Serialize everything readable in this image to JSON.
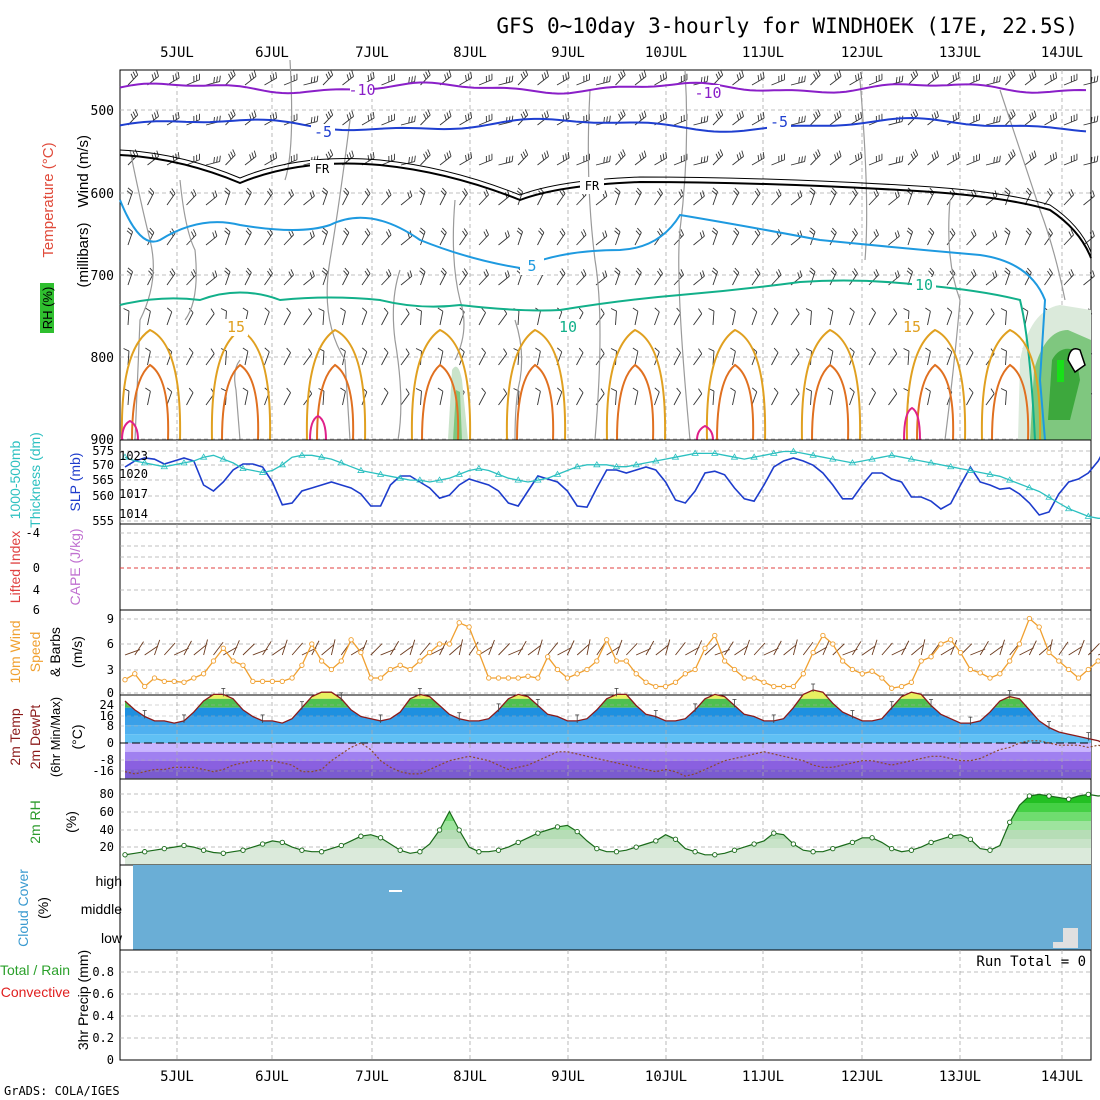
{
  "header": {
    "title": "GFS 0~10day 3-hourly for WINDHOEK (17E, 22.5S)",
    "footer": "GrADS: COLA/IGES",
    "run_total": "Run Total = 0"
  },
  "x_axis": {
    "date_labels": [
      "5JUL",
      "6JUL",
      "7JUL",
      "8JUL",
      "9JUL",
      "10JUL",
      "11JUL",
      "12JUL",
      "13JUL",
      "14JUL"
    ]
  },
  "colors": {
    "purple": "#8a1fc8",
    "blue": "#1f3fd0",
    "black": "#000000",
    "cyan": "#1e9ae0",
    "green_contour": "#12b08a",
    "orange": "#e0a020",
    "dark_orange": "#e07020",
    "magenta": "#e0208a",
    "grid": "#999999",
    "slp": "#1d3ccc",
    "thickness": "#2cc0c0",
    "wind10m": "#f0a030",
    "cloud": "#6aaed6",
    "rh": "#2a9a2a"
  },
  "panels": [
    {
      "id": "upper-air",
      "labels": [
        "Wind (m/s)",
        "Temperature (°C)",
        "(millibars)",
        "RH (%)"
      ],
      "y_ticks": [
        "500",
        "600",
        "700",
        "800",
        "900"
      ],
      "contour_labels": [
        "-10",
        "-10",
        "-5",
        "-5",
        "FR",
        "FR",
        "5",
        "10",
        "10",
        "15",
        "15"
      ]
    },
    {
      "id": "slp-thickness",
      "labels": [
        "1000-500mb",
        "Thickness (dm)",
        "SLP (mb)"
      ],
      "left_ticks": [
        "575",
        "570",
        "565",
        "560",
        "555"
      ],
      "right_ticks": [
        "1023",
        "1020",
        "1017",
        "1014"
      ]
    },
    {
      "id": "cape-li",
      "labels": [
        "Lifted Index",
        "CAPE (J/kg)"
      ],
      "y_ticks": [
        "-4",
        "0",
        "4",
        "6"
      ]
    },
    {
      "id": "wind10m",
      "labels": [
        "10m Wind",
        "Speed",
        "& Barbs",
        "(m/s)"
      ],
      "y_ticks": [
        "9",
        "6",
        "3",
        "0"
      ]
    },
    {
      "id": "temp2m",
      "labels": [
        "2m Temp",
        "2m DewPt",
        "(6hr Min/Max)",
        "(°C)"
      ],
      "y_ticks": [
        "24",
        "16",
        "8",
        "0",
        "-8",
        "-16"
      ]
    },
    {
      "id": "rh2m",
      "labels": [
        "2m RH",
        "(%)"
      ],
      "y_ticks": [
        "80",
        "60",
        "40",
        "20"
      ]
    },
    {
      "id": "cloud",
      "labels": [
        "Cloud Cover",
        "(%)"
      ],
      "y_ticks": [
        "high",
        "middle",
        "low"
      ]
    },
    {
      "id": "precip",
      "labels": [
        "Total / Rain",
        "Convective",
        "3hr Precip (mm)"
      ],
      "y_ticks": [
        "0.8",
        "0.6",
        "0.4",
        "0.2",
        "0"
      ]
    }
  ],
  "chart_data": [
    {
      "type": "line",
      "title": "SLP (mb)",
      "x_unit": "3-hourly steps from 4 JUL 12Z",
      "series": [
        {
          "name": "SLP (mb)",
          "values": [
            1020.5,
            1021.5,
            1022,
            1021.8,
            1021,
            1021.5,
            1022,
            1021.5,
            1017.5,
            1016.5,
            1018,
            1020,
            1021,
            1021,
            1020.5,
            1018,
            1014.2,
            1014.5,
            1016.5,
            1017,
            1017.5,
            1018,
            1017.5,
            1017,
            1016,
            1014,
            1014,
            1017.5,
            1019,
            1019,
            1018,
            1017,
            1015.3,
            1015.8,
            1017.5,
            1018.5,
            1018,
            1017.5,
            1016.5,
            1014.5,
            1014,
            1016.5,
            1019,
            1018.5,
            1018,
            1016.5,
            1014,
            1013.8,
            1017,
            1020,
            1020,
            1019.5,
            1020,
            1020.5,
            1020,
            1018,
            1015,
            1014.5,
            1016.5,
            1019.5,
            1019.8,
            1019.2,
            1017,
            1015.2,
            1014.8,
            1017.5,
            1020.5,
            1021.5,
            1022,
            1021.5,
            1020.8,
            1019.5,
            1017.5,
            1015.2,
            1015.2,
            1017.5,
            1019.5,
            1019.5,
            1018.5,
            1018,
            1015.5,
            1015.5,
            1014.8,
            1013.5,
            1014.4,
            1017.5,
            1020.5,
            1018,
            1017.5,
            1016.8,
            1017,
            1016,
            1014.5,
            1012.5,
            1013,
            1016,
            1018,
            1018.5,
            1019.5,
            1021.5,
            1024.5
          ]
        },
        {
          "name": "1000-500mb Thickness (dm)",
          "values": [
            571.5,
            570.5,
            570,
            569.5,
            569,
            569.5,
            570,
            570.5,
            571.5,
            572,
            571,
            570,
            568.5,
            568,
            567.5,
            568,
            569.5,
            571.5,
            572,
            572,
            571.5,
            571,
            570,
            569,
            568,
            567.5,
            567,
            566.5,
            566,
            565.5,
            565.5,
            565,
            565.5,
            566,
            567,
            568,
            568.5,
            568,
            567,
            566,
            565.5,
            565,
            565.5,
            566,
            567,
            568,
            569,
            569.5,
            569.5,
            569.5,
            569,
            569,
            569.5,
            570,
            570.5,
            571,
            571.5,
            572,
            572.5,
            572.5,
            572.5,
            572,
            571.5,
            571,
            571.5,
            572,
            572.5,
            573,
            573,
            572.5,
            572,
            571.5,
            571,
            570.5,
            570,
            570.5,
            571,
            571.5,
            572,
            571.5,
            571,
            570.5,
            570,
            569.5,
            569,
            568.5,
            568,
            567.5,
            567,
            566.5,
            565.5,
            564.5,
            563.5,
            562.5,
            561,
            559.5,
            558,
            557,
            556,
            555.5,
            555.5
          ]
        }
      ],
      "ylim_slp": [
        1011,
        1025
      ],
      "ylim_thickness": [
        554,
        576
      ]
    },
    {
      "type": "line",
      "title": "10m Wind Speed (m/s)",
      "x_unit": "3-hourly steps from 4 JUL 12Z",
      "series": [
        {
          "name": "10m Wind Speed",
          "values": [
            1.8,
            2.5,
            1,
            2,
            1.6,
            1.6,
            1.5,
            2,
            2.5,
            4,
            5.5,
            4,
            3.5,
            1.6,
            1.6,
            1.6,
            1.6,
            2,
            3.5,
            6,
            4,
            3,
            4,
            6.5,
            5,
            2,
            2,
            3,
            3.5,
            3,
            4,
            5,
            6,
            6,
            8.5,
            8,
            5,
            2,
            2,
            2,
            2,
            2.2,
            2,
            4.5,
            3,
            2,
            2.5,
            3,
            4,
            6.5,
            4,
            4,
            2.5,
            1.5,
            1,
            1,
            1.5,
            2.5,
            3,
            5.5,
            7,
            4,
            3,
            2,
            2,
            1.5,
            1,
            1,
            1,
            2.5,
            5,
            7,
            6,
            4,
            3,
            2.5,
            2.8,
            2,
            0.8,
            1,
            1.5,
            4,
            4.5,
            6,
            6.5,
            5,
            3,
            2.6,
            2,
            2.5,
            4,
            6,
            9,
            8,
            5,
            4,
            3,
            2,
            3,
            4,
            3
          ]
        }
      ],
      "ylim": [
        0,
        10
      ]
    },
    {
      "type": "area",
      "title": "2m Temp / 2m DewPt (°C)",
      "x_unit": "3-hourly steps from 4 JUL 12Z",
      "series": [
        {
          "name": "2m Temp",
          "values": [
            19,
            15,
            12,
            10,
            10,
            9,
            10,
            14,
            19,
            22,
            22,
            20,
            15,
            12,
            10,
            10,
            9,
            11,
            16,
            21,
            23,
            23,
            20,
            15,
            12,
            11,
            10,
            11,
            14,
            20,
            22,
            21,
            17,
            13,
            11,
            10,
            10,
            11,
            15,
            20,
            22,
            21,
            17,
            13,
            12,
            10,
            10,
            11,
            15,
            20,
            22,
            22,
            17,
            13,
            12,
            10,
            10,
            11,
            15,
            20,
            22,
            21,
            17,
            13,
            12,
            10,
            10,
            11,
            16,
            22,
            24,
            23,
            18,
            14,
            12,
            10,
            10,
            11,
            16,
            21,
            23,
            22,
            17,
            13,
            11,
            9,
            9,
            10,
            14,
            19,
            21,
            20,
            15,
            10,
            7,
            5,
            4,
            3,
            2,
            1,
            -1
          ]
        },
        {
          "name": "2m DewPt",
          "values": [
            -13,
            -14,
            -13,
            -12,
            -12,
            -11,
            -11,
            -11,
            -12,
            -13,
            -12,
            -10,
            -9,
            -8,
            -8,
            -8,
            -9,
            -10,
            -13,
            -13,
            -12,
            -8,
            -5,
            -2,
            0,
            -3,
            -8,
            -11,
            -13,
            -14,
            -14,
            -12,
            -10,
            -8,
            -7,
            -6,
            -7,
            -8,
            -10,
            -12,
            -11,
            -10,
            -8,
            -6,
            -4,
            -4,
            -5,
            -6,
            -7,
            -8,
            -9,
            -10,
            -11,
            -12,
            -13,
            -12,
            -13,
            -15,
            -14,
            -12,
            -10,
            -8,
            -7,
            -6,
            -5,
            -4,
            -5,
            -6,
            -7,
            -8,
            -10,
            -11,
            -11,
            -10,
            -9,
            -8,
            -8,
            -9,
            -10,
            -9,
            -8,
            -7,
            -6,
            -6,
            -7,
            -8,
            -8,
            -7,
            -5,
            -3,
            -2,
            0,
            1,
            1,
            0,
            -1,
            -1,
            -1,
            -2,
            -1,
            -2
          ]
        }
      ],
      "ylim": [
        -22,
        26
      ]
    },
    {
      "type": "area",
      "title": "2m RH (%)",
      "x_unit": "3-hourly steps from 4 JUL 12Z",
      "series": [
        {
          "name": "2m RH",
          "values": [
            8,
            10,
            12,
            14,
            16,
            18,
            20,
            18,
            14,
            11,
            10,
            12,
            14,
            18,
            22,
            26,
            24,
            18,
            14,
            12,
            12,
            16,
            20,
            26,
            32,
            34,
            30,
            22,
            14,
            10,
            12,
            22,
            40,
            64,
            40,
            18,
            12,
            12,
            14,
            18,
            24,
            30,
            36,
            40,
            44,
            46,
            38,
            26,
            16,
            12,
            12,
            14,
            18,
            22,
            26,
            34,
            28,
            16,
            12,
            8,
            8,
            10,
            14,
            18,
            22,
            26,
            36,
            34,
            22,
            14,
            12,
            12,
            16,
            20,
            24,
            30,
            30,
            24,
            16,
            12,
            14,
            18,
            24,
            28,
            32,
            34,
            28,
            16,
            14,
            20,
            50,
            72,
            84,
            86,
            84,
            82,
            80,
            84,
            86,
            84,
            86
          ]
        }
      ],
      "ylim": [
        0,
        100
      ]
    },
    {
      "type": "bar",
      "title": "3hr Precip (mm)",
      "x_unit": "3-hourly steps from 4 JUL 12Z",
      "series": [
        {
          "name": "3hr Precip",
          "values": []
        }
      ],
      "ylim": [
        0,
        1
      ]
    }
  ]
}
